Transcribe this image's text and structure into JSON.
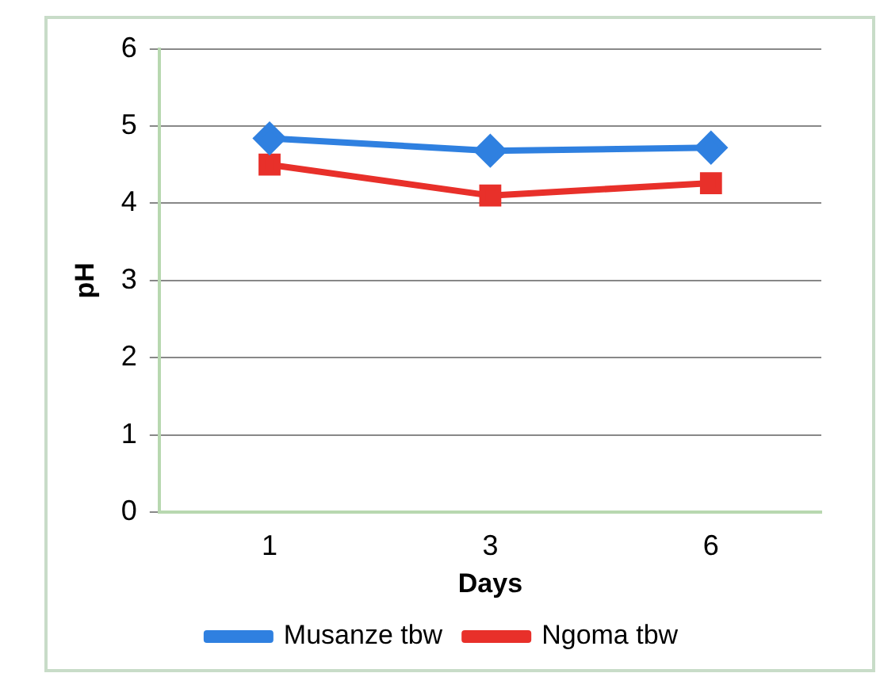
{
  "chart_data": {
    "type": "line",
    "xlabel": "Days",
    "ylabel": "pH",
    "categories": [
      "1",
      "3",
      "6"
    ],
    "series": [
      {
        "name": "Musanze tbw",
        "color": "#2f80e0",
        "values": [
          4.84,
          4.68,
          4.72
        ],
        "marker": "diamond"
      },
      {
        "name": "Ngoma tbw",
        "color": "#e8302a",
        "values": [
          4.5,
          4.1,
          4.26
        ],
        "marker": "square"
      }
    ],
    "ylim": [
      0,
      6
    ],
    "yticks": [
      0,
      1,
      2,
      3,
      4,
      5,
      6
    ],
    "grid": "y",
    "legend": "bottom"
  }
}
